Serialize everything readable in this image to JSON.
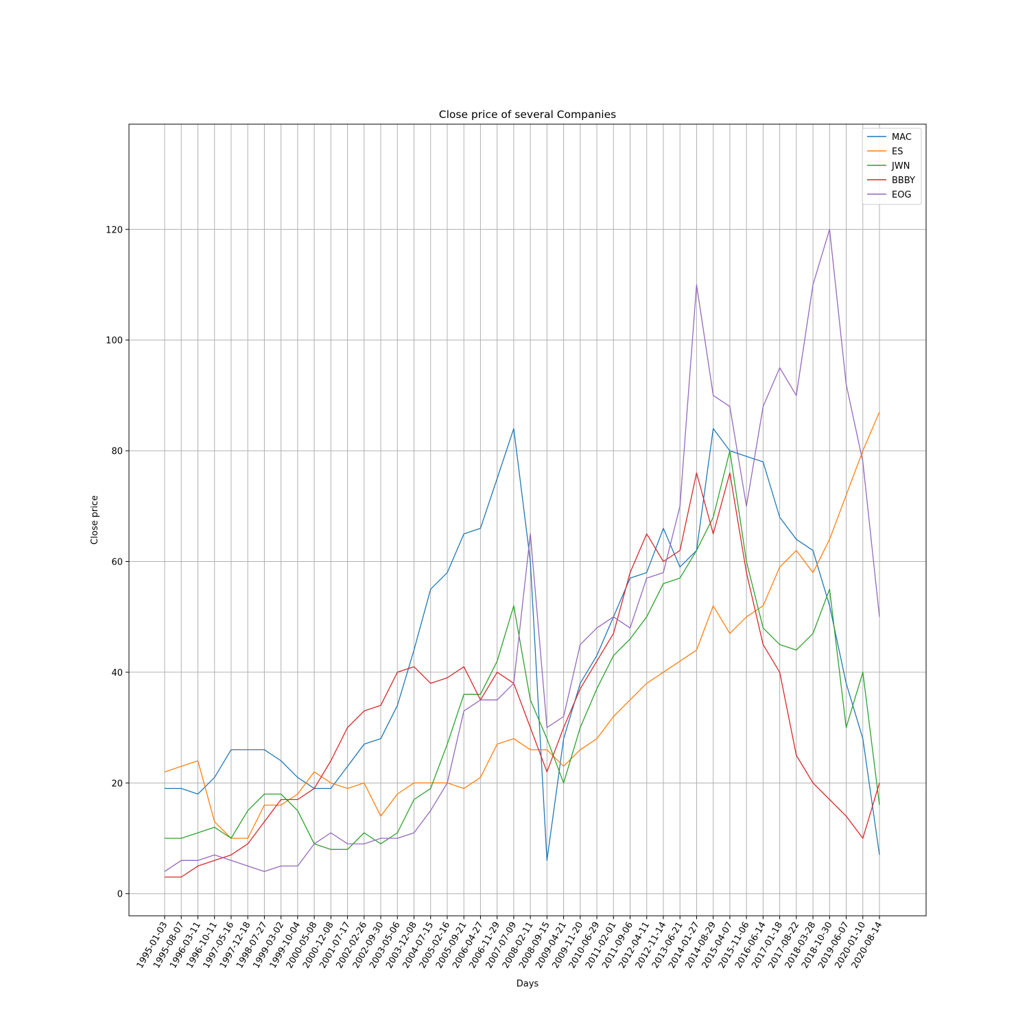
{
  "chart_data": {
    "type": "line",
    "title": "Close price of several Companies",
    "xlabel": "Days",
    "ylabel": "Close price",
    "ylim": [
      -4,
      139
    ],
    "yticks": [
      0,
      20,
      40,
      60,
      80,
      100,
      120
    ],
    "grid": true,
    "legend_position": "top-right",
    "x": [
      "1995-01-03",
      "1995-08-07",
      "1996-03-11",
      "1996-10-11",
      "1997-05-16",
      "1997-12-18",
      "1998-07-27",
      "1999-03-02",
      "1999-10-04",
      "2000-05-08",
      "2000-12-08",
      "2001-07-17",
      "2002-02-26",
      "2002-09-30",
      "2003-05-06",
      "2003-12-08",
      "2004-07-15",
      "2005-02-16",
      "2005-09-21",
      "2006-04-27",
      "2006-11-29",
      "2007-07-09",
      "2008-02-11",
      "2008-09-15",
      "2009-04-21",
      "2009-11-20",
      "2010-06-29",
      "2011-02-01",
      "2011-09-06",
      "2012-04-11",
      "2012-11-14",
      "2013-06-21",
      "2014-01-27",
      "2014-08-29",
      "2015-04-07",
      "2015-11-06",
      "2016-06-14",
      "2017-01-18",
      "2017-08-22",
      "2018-03-28",
      "2018-10-30",
      "2019-06-07",
      "2020-01-10",
      "2020-08-14"
    ],
    "series": [
      {
        "name": "MAC",
        "color": "#1f77b4",
        "values": [
          19,
          19,
          18,
          21,
          26,
          26,
          26,
          24,
          21,
          19,
          19,
          23,
          27,
          28,
          34,
          44,
          55,
          58,
          65,
          66,
          75,
          84,
          60,
          6,
          28,
          38,
          43,
          50,
          57,
          58,
          66,
          59,
          62,
          84,
          80,
          79,
          78,
          68,
          64,
          62,
          52,
          38,
          28,
          7
        ]
      },
      {
        "name": "ES",
        "color": "#ff7f0e",
        "values": [
          22,
          23,
          24,
          13,
          10,
          10,
          16,
          16,
          18,
          22,
          20,
          19,
          20,
          14,
          18,
          20,
          20,
          20,
          19,
          21,
          27,
          28,
          26,
          26,
          23,
          26,
          28,
          32,
          35,
          38,
          40,
          42,
          44,
          52,
          47,
          50,
          52,
          59,
          62,
          58,
          64,
          72,
          80,
          87
        ]
      },
      {
        "name": "JWN",
        "color": "#2ca02c",
        "values": [
          10,
          10,
          11,
          12,
          10,
          15,
          18,
          18,
          15,
          9,
          8,
          8,
          11,
          9,
          11,
          17,
          19,
          27,
          36,
          36,
          42,
          52,
          35,
          28,
          20,
          30,
          37,
          43,
          46,
          50,
          56,
          57,
          62,
          68,
          80,
          60,
          48,
          45,
          44,
          47,
          55,
          30,
          40,
          16
        ]
      },
      {
        "name": "BBBY",
        "color": "#d62728",
        "values": [
          3,
          3,
          5,
          6,
          7,
          9,
          13,
          17,
          17,
          19,
          24,
          30,
          33,
          34,
          40,
          41,
          38,
          39,
          41,
          35,
          40,
          38,
          30,
          22,
          30,
          37,
          42,
          47,
          58,
          65,
          60,
          62,
          76,
          65,
          76,
          58,
          45,
          40,
          25,
          20,
          17,
          14,
          10,
          20
        ]
      },
      {
        "name": "EOG",
        "color": "#9467bd",
        "values": [
          4,
          6,
          6,
          7,
          6,
          5,
          4,
          5,
          5,
          9,
          11,
          9,
          9,
          10,
          10,
          11,
          15,
          20,
          33,
          35,
          35,
          38,
          65,
          30,
          32,
          45,
          48,
          50,
          48,
          57,
          58,
          70,
          110,
          90,
          88,
          70,
          88,
          95,
          90,
          110,
          120,
          92,
          78,
          50
        ]
      }
    ]
  }
}
